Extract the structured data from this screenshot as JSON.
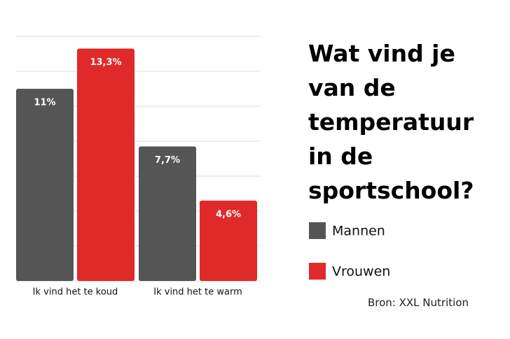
{
  "chart_data": {
    "type": "bar",
    "title": "Wat vind je van de temperatuur in de sportschool?",
    "categories": [
      "Ik vind het te koud",
      "Ik vind het te warm"
    ],
    "series": [
      {
        "name": "Mannen",
        "color": "#555555",
        "values": [
          11,
          7.7
        ],
        "value_labels": [
          "11%",
          "7,7%"
        ]
      },
      {
        "name": "Vrouwen",
        "color": "#e02a2a",
        "values": [
          13.3,
          4.6
        ],
        "value_labels": [
          "13,3%",
          "4,6%"
        ]
      }
    ],
    "ylim": [
      0,
      14
    ],
    "yticks": [
      0,
      2,
      4,
      6,
      8,
      10,
      12,
      14
    ],
    "grid": true,
    "source": "Bron: XXL Nutrition"
  }
}
